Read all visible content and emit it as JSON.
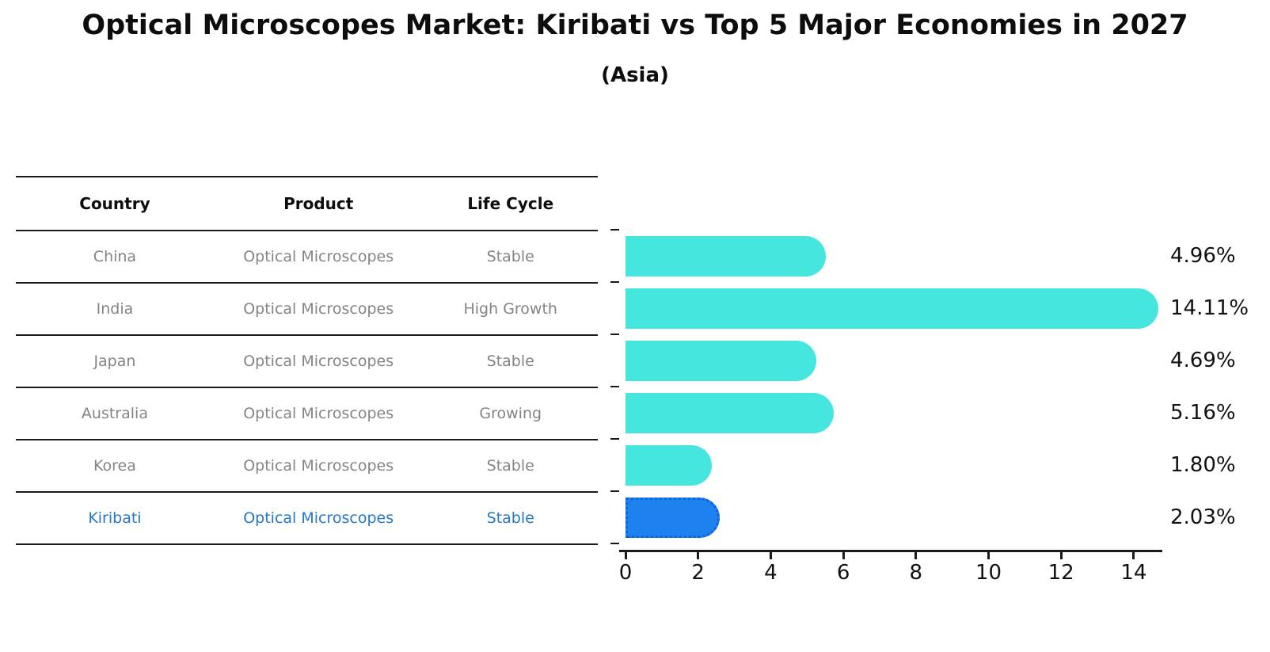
{
  "title": "Optical Microscopes Market: Kiribati vs Top 5 Major Economies in 2027",
  "subtitle": "(Asia)",
  "table": {
    "headers": [
      "Country",
      "Product",
      "Life Cycle"
    ]
  },
  "rows": [
    {
      "country": "China",
      "product": "Optical Microscopes",
      "life_cycle": "Stable",
      "value": 4.96,
      "value_label": "4.96%",
      "highlighted": false
    },
    {
      "country": "India",
      "product": "Optical Microscopes",
      "life_cycle": "High Growth",
      "value": 14.11,
      "value_label": "14.11%",
      "highlighted": false
    },
    {
      "country": "Japan",
      "product": "Optical Microscopes",
      "life_cycle": "Stable",
      "value": 4.69,
      "value_label": "4.69%",
      "highlighted": false
    },
    {
      "country": "Australia",
      "product": "Optical Microscopes",
      "life_cycle": "Growing",
      "value": 5.16,
      "value_label": "5.16%",
      "highlighted": false
    },
    {
      "country": "Korea",
      "product": "Optical Microscopes",
      "life_cycle": "Stable",
      "value": 1.8,
      "value_label": "1.80%",
      "highlighted": false
    },
    {
      "country": "Kiribati",
      "product": "Optical Microscopes",
      "life_cycle": "Stable",
      "value": 2.03,
      "value_label": "2.03%",
      "highlighted": true
    }
  ],
  "chart_data": {
    "type": "bar",
    "orientation": "horizontal",
    "title": "Optical Microscopes Market: Kiribati vs Top 5 Major Economies in 2027",
    "subtitle": "(Asia)",
    "categories": [
      "China",
      "India",
      "Japan",
      "Australia",
      "Korea",
      "Kiribati"
    ],
    "values": [
      4.96,
      14.11,
      4.69,
      5.16,
      1.8,
      2.03
    ],
    "value_labels": [
      "4.96%",
      "14.11%",
      "4.69%",
      "5.16%",
      "1.80%",
      "2.03%"
    ],
    "xlabel": "",
    "ylabel": "",
    "xlim": [
      0,
      14.8
    ],
    "xticks": [
      0,
      2,
      4,
      6,
      8,
      10,
      12,
      14
    ],
    "grid": false,
    "legend": false,
    "highlight_category": "Kiribati"
  },
  "colors": {
    "bar_default": "#45e6dd",
    "bar_highlight": "#1e82ee",
    "bar_highlight_border": "#0f62d8",
    "highlight_text": "#2578c8",
    "muted_text": "#848484",
    "text": "#111111",
    "axis": "#1a1a1a",
    "background": "#ffffff"
  }
}
